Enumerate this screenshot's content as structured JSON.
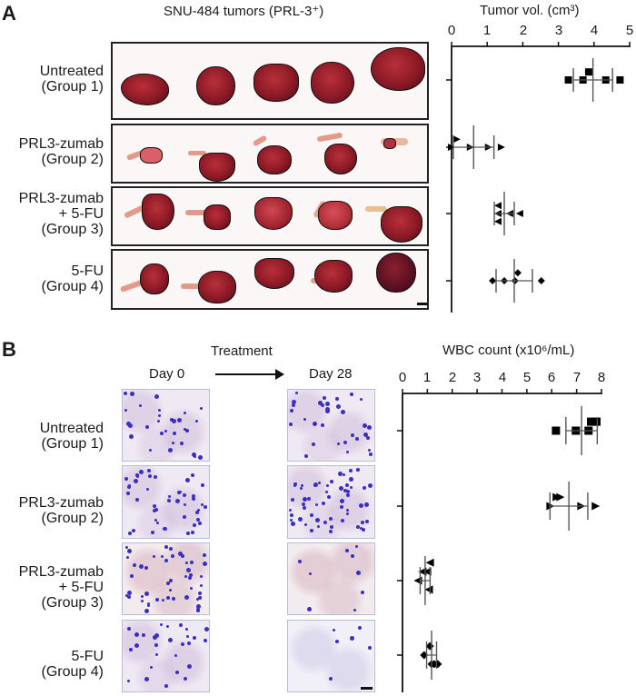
{
  "figure": {
    "panel_a": {
      "letter": "A",
      "title": "SNU-484 tumors (PRL-3⁺)",
      "groups": [
        {
          "label": "Untreated\n(Group 1)"
        },
        {
          "label": "PRL3-zumab\n(Group 2)"
        },
        {
          "label": "PRL3-zumab\n+ 5-FU\n(Group 3)"
        },
        {
          "label": "5-FU\n(Group 4)"
        }
      ],
      "axis_title": "Tumor vol. (cm³)",
      "ticks": [
        "0",
        "1",
        "2",
        "3",
        "4",
        "5"
      ]
    },
    "panel_b": {
      "letter": "B",
      "treatment_label": "Treatment",
      "day0_label": "Day 0",
      "day28_label": "Day 28",
      "groups": [
        {
          "label": "Untreated\n(Group 1)"
        },
        {
          "label": "PRL3-zumab\n(Group 2)"
        },
        {
          "label": "PRL3-zumab\n+ 5-FU\n(Group 3)"
        },
        {
          "label": "5-FU\n(Group 4)"
        }
      ],
      "axis_title": "WBC count (x10⁶/mL)",
      "ticks": [
        "0",
        "1",
        "2",
        "3",
        "4",
        "5",
        "6",
        "7",
        "8"
      ]
    }
  },
  "chart_data": [
    {
      "type": "scatter",
      "title": "Tumor vol. (cm³)",
      "panel": "A",
      "xlabel": "Tumor vol. (cm³)",
      "ylabel": "",
      "xlim": [
        0,
        5
      ],
      "categories": [
        "Untreated (Group 1)",
        "PRL3-zumab (Group 2)",
        "PRL3-zumab + 5-FU (Group 3)",
        "5-FU (Group 4)"
      ],
      "series": [
        {
          "name": "Untreated (Group 1)",
          "marker": "square",
          "values": [
            3.28,
            3.69,
            3.85,
            4.33,
            4.73
          ],
          "mean": 3.97,
          "sd": 0.55
        },
        {
          "name": "PRL3-zumab (Group 2)",
          "marker": "triangle-right",
          "values": [
            0.0,
            0.15,
            0.53,
            1.04,
            1.4
          ],
          "mean": 0.62,
          "sd": 0.57
        },
        {
          "name": "PRL3-zumab + 5-FU (Group 3)",
          "marker": "triangle-left",
          "values": [
            1.3,
            1.3,
            1.3,
            1.63,
            1.91
          ],
          "mean": 1.48,
          "sd": 0.28
        },
        {
          "name": "5-FU (Group 4)",
          "marker": "diamond",
          "values": [
            1.15,
            1.48,
            1.78,
            1.86,
            2.52
          ],
          "mean": 1.76,
          "sd": 0.51
        }
      ],
      "grid": false,
      "legend": "none"
    },
    {
      "type": "scatter",
      "title": "WBC count (x10⁶/mL)",
      "panel": "B",
      "xlabel": "WBC count (x10⁶/mL)",
      "ylabel": "",
      "xlim": [
        0,
        8
      ],
      "categories": [
        "Untreated (Group 1)",
        "PRL3-zumab (Group 2)",
        "PRL3-zumab + 5-FU (Group 3)",
        "5-FU (Group 4)"
      ],
      "series": [
        {
          "name": "Untreated (Group 1)",
          "marker": "square",
          "values": [
            6.17,
            6.97,
            7.48,
            7.58,
            7.8
          ],
          "mean": 7.2,
          "sd": 0.63
        },
        {
          "name": "PRL3-zumab (Group 2)",
          "marker": "triangle-right",
          "values": [
            5.95,
            6.2,
            6.35,
            7.19,
            7.77
          ],
          "mean": 6.69,
          "sd": 0.76
        },
        {
          "name": "PRL3-zumab + 5-FU (Group 3)",
          "marker": "triangle-left",
          "values": [
            0.62,
            0.8,
            0.99,
            1.06,
            1.1
          ],
          "mean": 0.91,
          "sd": 0.2
        },
        {
          "name": "5-FU (Group 4)",
          "marker": "diamond",
          "values": [
            0.87,
            1.1,
            1.17,
            1.28,
            1.42
          ],
          "mean": 1.17,
          "sd": 0.2
        }
      ],
      "grid": false,
      "legend": "none"
    }
  ]
}
